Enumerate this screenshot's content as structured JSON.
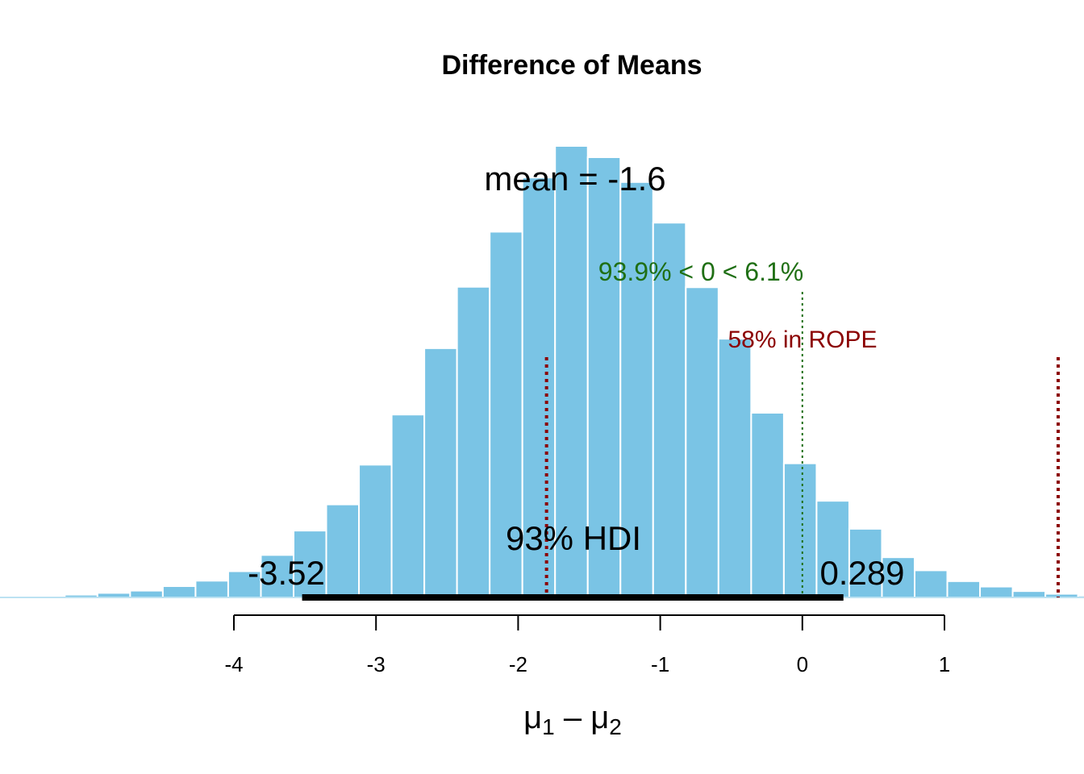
{
  "chart_data": {
    "type": "bar",
    "title": "Difference of Means",
    "xlabel": {
      "base": "μ",
      "sub1": "1",
      "op": " – ",
      "sub2": "2"
    },
    "xlim": [
      -5.4,
      1.95
    ],
    "ylim": [
      0,
      1
    ],
    "x_ticks": [
      -4,
      -3,
      -2,
      -1,
      0,
      1
    ],
    "x_tick_labels": [
      "-4",
      "-3",
      "-2",
      "-1",
      "0",
      "1"
    ],
    "bar_color": "#7ac4e5",
    "bar_border_color": "#ffffff",
    "bin_width": 0.23,
    "bin_start": -5.42,
    "values": [
      0.002,
      0.006,
      0.01,
      0.015,
      0.025,
      0.037,
      0.058,
      0.094,
      0.148,
      0.206,
      0.294,
      0.405,
      0.552,
      0.688,
      0.81,
      0.93,
      1.0,
      0.975,
      0.92,
      0.83,
      0.687,
      0.573,
      0.409,
      0.297,
      0.214,
      0.152,
      0.089,
      0.06,
      0.036,
      0.024,
      0.014,
      0.008,
      0.004
    ],
    "mean_label": "mean = -1.6",
    "hdi": {
      "label": "93% HDI",
      "lower": -3.52,
      "upper": 0.289,
      "lower_label": "-3.52",
      "upper_label": "0.289",
      "color": "#000000"
    },
    "comparison": {
      "value": 0,
      "label": "93.9% < 0 < 6.1%",
      "color": "#1f6f14"
    },
    "rope": {
      "lower": -1.8,
      "upper": 1.8,
      "label": "58% in ROPE",
      "color": "#8b0000"
    }
  }
}
